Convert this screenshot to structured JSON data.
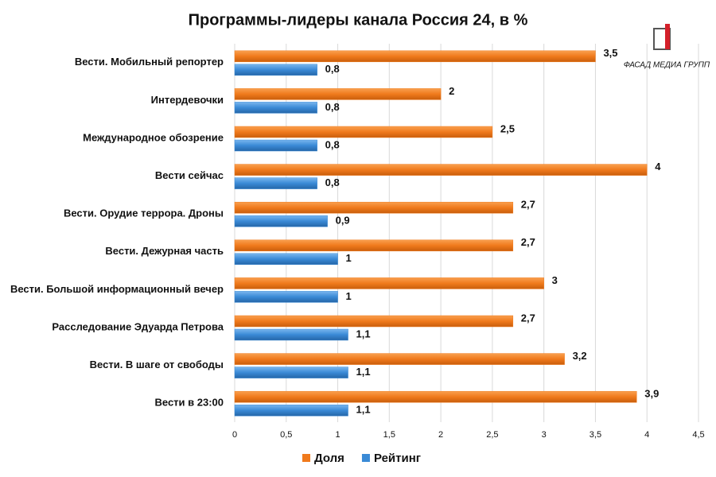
{
  "chart_data": {
    "type": "hbar",
    "title": "Программы-лидеры канала Россия 24, в %",
    "logo": "ФАСАД МЕДИА ГРУПП",
    "categories": [
      "Вести. Мобильный репортер",
      "Интердевочки",
      "Международное обозрение",
      "Вести сейчас",
      "Вести. Орудие террора. Дроны",
      "Вести. Дежурная часть",
      "Вести. Большой информационный вечер",
      "Расследование Эдуарда Петрова",
      "Вести. В шаге от свободы",
      "Вести в 23:00"
    ],
    "series": [
      {
        "name": "Доля",
        "color": "#f07a1c",
        "values": [
          3.5,
          2,
          2.5,
          4,
          2.7,
          2.7,
          3,
          2.7,
          3.2,
          3.9
        ],
        "value_labels": [
          "3,5",
          "2",
          "2,5",
          "4",
          "2,7",
          "2,7",
          "3",
          "2,7",
          "3,2",
          "3,9"
        ]
      },
      {
        "name": "Рейтинг",
        "color": "#3a8ad6",
        "values": [
          0.8,
          0.8,
          0.8,
          0.8,
          0.9,
          1,
          1,
          1.1,
          1.1,
          1.1
        ],
        "value_labels": [
          "0,8",
          "0,8",
          "0,8",
          "0,8",
          "0,9",
          "1",
          "1",
          "1,1",
          "1,1",
          "1,1"
        ]
      }
    ],
    "xlim": [
      0,
      4.5
    ],
    "xticks": [
      0,
      {
        "value": 0.5,
        "label": "0,5"
      },
      1,
      {
        "value": 1.5,
        "label": "1,5"
      },
      2,
      {
        "value": 2.5,
        "label": "2,5"
      },
      3,
      {
        "value": 3.5,
        "label": "3,5"
      },
      4,
      {
        "value": 4.5,
        "label": "4,5"
      }
    ],
    "grid": true,
    "legend": "bottom"
  }
}
